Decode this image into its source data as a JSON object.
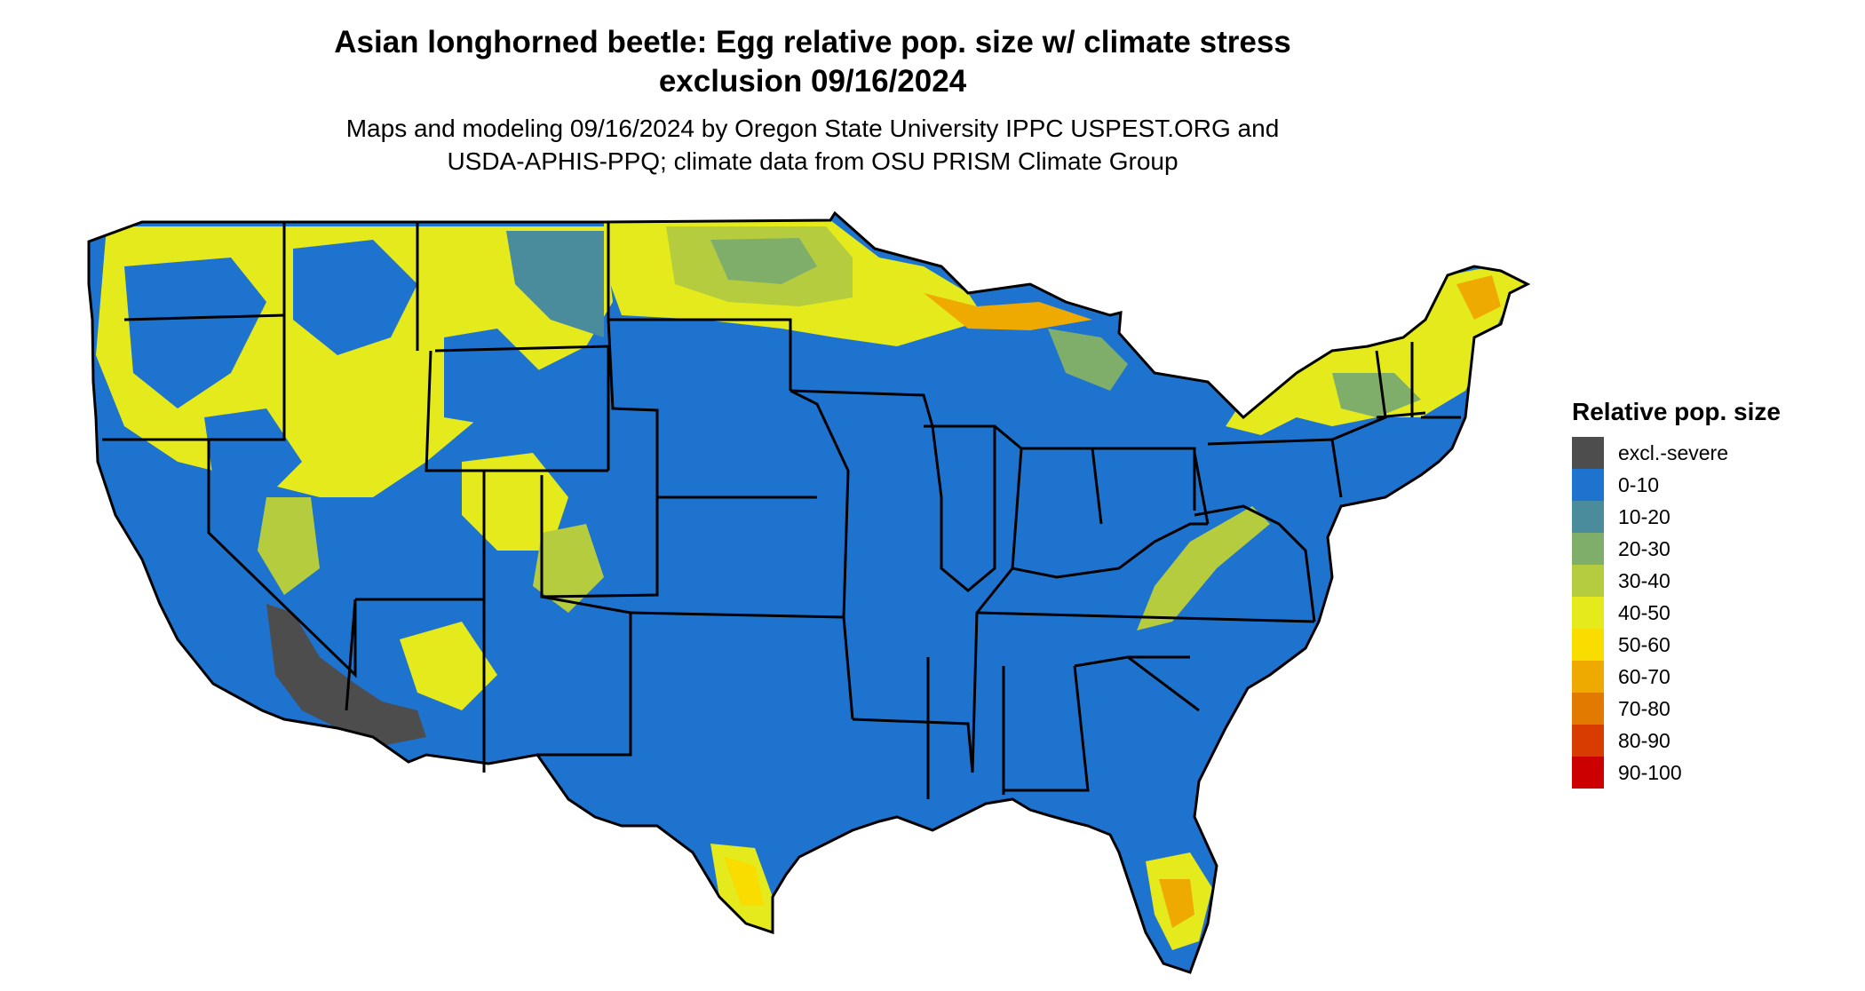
{
  "title_line1": "Asian longhorned beetle: Egg relative pop. size w/ climate stress",
  "title_line2": "exclusion 09/16/2024",
  "subtitle_line1": "Maps and modeling 09/16/2024 by Oregon State University IPPC USPEST.ORG and",
  "subtitle_line2": "USDA-APHIS-PPQ; climate data from OSU PRISM Climate Group",
  "legend": {
    "title": "Relative pop. size",
    "items": [
      {
        "label": "excl.-severe",
        "color": "#4d4d4d"
      },
      {
        "label": "0-10",
        "color": "#1e73cf"
      },
      {
        "label": "10-20",
        "color": "#4a8c9c"
      },
      {
        "label": "20-30",
        "color": "#7fae6b"
      },
      {
        "label": "30-40",
        "color": "#b4cc3e"
      },
      {
        "label": "40-50",
        "color": "#e4ea1c"
      },
      {
        "label": "50-60",
        "color": "#f9dc00"
      },
      {
        "label": "60-70",
        "color": "#eeaa00"
      },
      {
        "label": "70-80",
        "color": "#e37a00"
      },
      {
        "label": "80-90",
        "color": "#d83c00"
      },
      {
        "label": "90-100",
        "color": "#cc0000"
      }
    ]
  }
}
